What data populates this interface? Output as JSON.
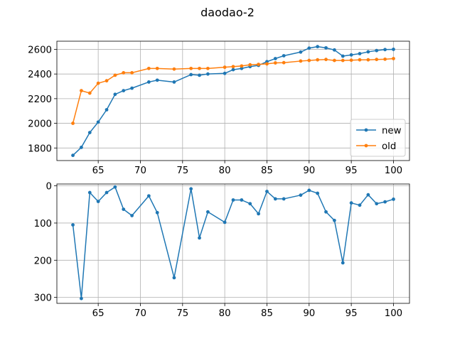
{
  "title": "daodao-2",
  "colors": {
    "new": "#1f77b4",
    "old": "#ff7f0e"
  },
  "chart_data": [
    {
      "type": "line",
      "xlim": [
        60.1,
        101.9
      ],
      "ylim": [
        1698,
        2666
      ],
      "xticks": [
        65,
        70,
        75,
        80,
        85,
        90,
        95,
        100
      ],
      "yticks": [
        1800,
        2000,
        2200,
        2400,
        2600
      ],
      "grid": true,
      "legend": "lower-right",
      "series": [
        {
          "name": "new",
          "color": "#1f77b4",
          "x": [
            62,
            63,
            64,
            65,
            66,
            67,
            68,
            69,
            71,
            72,
            74,
            76,
            77,
            78,
            80,
            81,
            82,
            83,
            84,
            85,
            86,
            87,
            89,
            90,
            91,
            92,
            93,
            94,
            95,
            96,
            97,
            98,
            99,
            100
          ],
          "values": [
            1740,
            1805,
            1925,
            2010,
            2110,
            2235,
            2265,
            2285,
            2335,
            2350,
            2335,
            2395,
            2390,
            2400,
            2405,
            2435,
            2445,
            2460,
            2470,
            2500,
            2525,
            2548,
            2578,
            2610,
            2622,
            2612,
            2595,
            2545,
            2555,
            2565,
            2580,
            2590,
            2598,
            2600
          ]
        },
        {
          "name": "old",
          "color": "#ff7f0e",
          "x": [
            62,
            63,
            64,
            65,
            66,
            67,
            68,
            69,
            71,
            72,
            74,
            76,
            77,
            78,
            80,
            81,
            82,
            83,
            84,
            85,
            86,
            87,
            89,
            90,
            91,
            92,
            93,
            94,
            95,
            96,
            97,
            98,
            99,
            100
          ],
          "values": [
            2000,
            2265,
            2245,
            2325,
            2345,
            2390,
            2410,
            2410,
            2445,
            2445,
            2440,
            2445,
            2445,
            2445,
            2455,
            2460,
            2465,
            2475,
            2478,
            2482,
            2490,
            2492,
            2505,
            2510,
            2515,
            2518,
            2510,
            2510,
            2512,
            2515,
            2515,
            2518,
            2520,
            2525
          ]
        }
      ]
    },
    {
      "type": "line",
      "xlim": [
        60.1,
        101.9
      ],
      "ylim": [
        316,
        -5
      ],
      "y_inverted": true,
      "xticks": [
        65,
        70,
        75,
        80,
        85,
        90,
        95,
        100
      ],
      "yticks": [
        0,
        100,
        200,
        300
      ],
      "grid": true,
      "series": [
        {
          "color": "#1f77b4",
          "x": [
            62,
            63,
            64,
            65,
            66,
            67,
            68,
            69,
            71,
            72,
            74,
            76,
            77,
            78,
            80,
            81,
            82,
            83,
            84,
            85,
            86,
            87,
            89,
            90,
            91,
            92,
            93,
            94,
            95,
            96,
            97,
            98,
            99,
            100
          ],
          "values": [
            105,
            303,
            18,
            42,
            18,
            3,
            63,
            80,
            27,
            72,
            247,
            8,
            140,
            70,
            98,
            38,
            38,
            48,
            75,
            15,
            35,
            35,
            25,
            12,
            20,
            70,
            93,
            207,
            46,
            52,
            24,
            48,
            43,
            36
          ]
        }
      ]
    }
  ]
}
